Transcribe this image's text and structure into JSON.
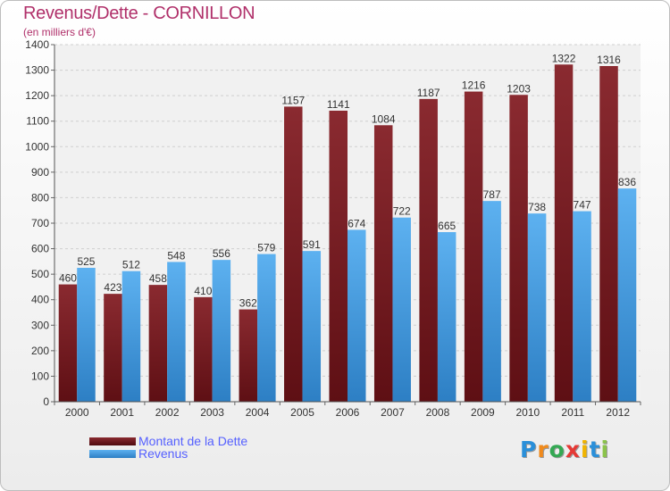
{
  "title": "Revenus/Dette - CORNILLON",
  "subtitle": "(en milliers d'€)",
  "chart_data": {
    "type": "bar",
    "title": "Revenus/Dette - CORNILLON",
    "ylabel": "(en milliers d'€)",
    "xlabel": "",
    "categories": [
      "2000",
      "2001",
      "2002",
      "2003",
      "2004",
      "2005",
      "2006",
      "2007",
      "2008",
      "2009",
      "2010",
      "2011",
      "2012"
    ],
    "ylim": [
      0,
      1400
    ],
    "yticks": [
      0,
      100,
      200,
      300,
      400,
      500,
      600,
      700,
      800,
      900,
      1000,
      1100,
      1200,
      1300,
      1400
    ],
    "grid": true,
    "series": [
      {
        "name": "Montant de la Dette",
        "color": "#7a1f24",
        "values": [
          460,
          423,
          458,
          410,
          362,
          1157,
          1141,
          1084,
          1187,
          1216,
          1203,
          1322,
          1316
        ]
      },
      {
        "name": "Revenus",
        "color": "#4aa3e8",
        "values": [
          525,
          512,
          548,
          556,
          579,
          591,
          674,
          722,
          665,
          787,
          738,
          747,
          836
        ]
      }
    ]
  },
  "legend": {
    "items": [
      {
        "label": "Montant de la Dette",
        "color": "#7a1f24"
      },
      {
        "label": "Revenus",
        "color": "#4aa3e8"
      }
    ]
  },
  "logo": {
    "letters": [
      "P",
      "r",
      "o",
      "x",
      "i",
      "t",
      "i"
    ],
    "colors": [
      "#2a8fd9",
      "#f08a1c",
      "#34a853",
      "#e53935",
      "#f0b400",
      "#2a8fd9",
      "#8bc34a"
    ]
  }
}
